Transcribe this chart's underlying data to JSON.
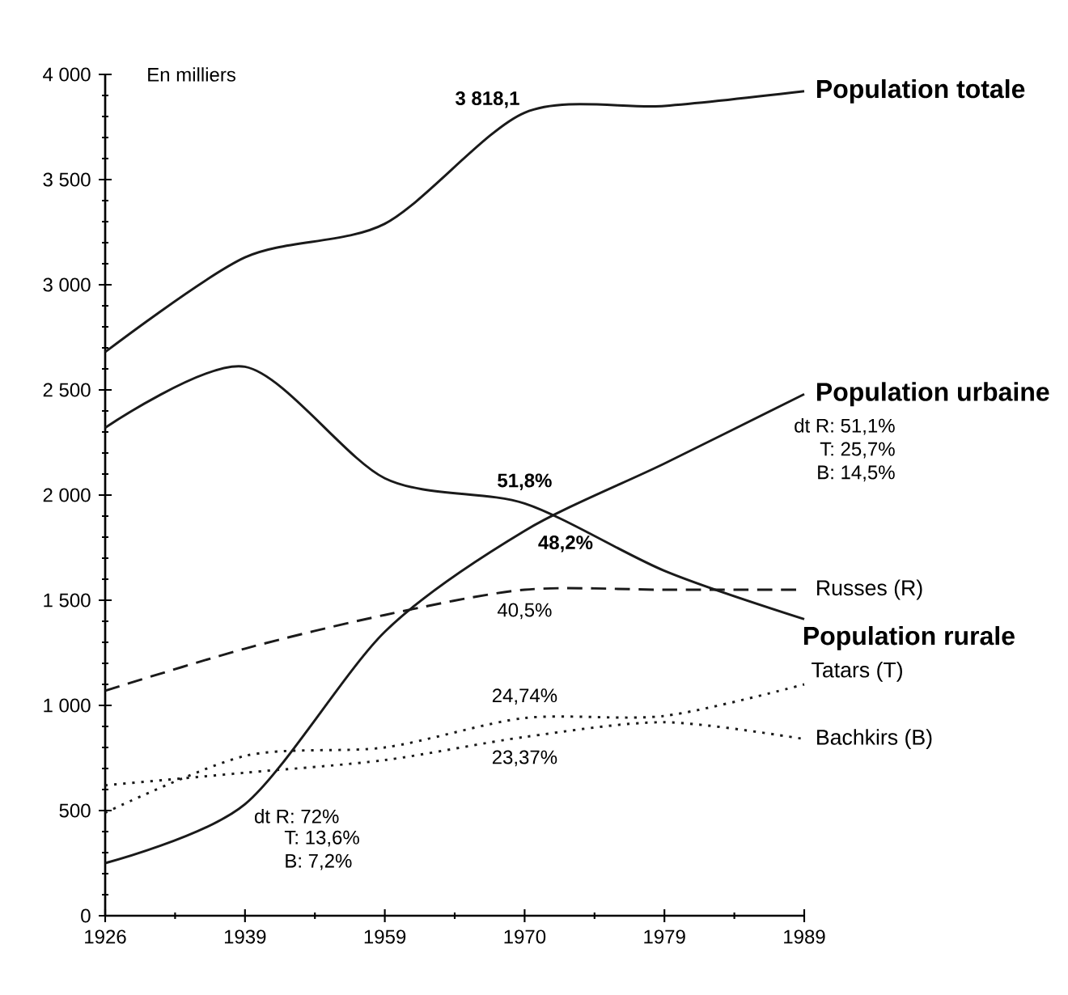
{
  "chart_data": {
    "type": "line",
    "ylabel": "En milliers",
    "ylim": [
      0,
      4000
    ],
    "categories": [
      "1926",
      "1939",
      "1959",
      "1970",
      "1979",
      "1989"
    ],
    "yticks": [
      0,
      500,
      {
        "value": 1000,
        "label": "1 000"
      },
      {
        "value": 1500,
        "label": "1 500"
      },
      {
        "value": 2000,
        "label": "2 000"
      },
      {
        "value": 2500,
        "label": "2 500"
      },
      {
        "value": 3000,
        "label": "3 000"
      },
      {
        "value": 3500,
        "label": "3 500"
      },
      {
        "value": 4000,
        "label": "4 000"
      }
    ],
    "grid": false,
    "marker": "none",
    "series": [
      {
        "name": "Population totale",
        "color": "#1a1a1a",
        "line_style": "solid",
        "values": [
          2680,
          3130,
          3290,
          3818,
          3850,
          3920
        ]
      },
      {
        "name": "Population urbaine",
        "color": "#1a1a1a",
        "line_style": "solid",
        "values": [
          250,
          530,
          1350,
          1830,
          2150,
          2480
        ]
      },
      {
        "name": "Population rurale",
        "color": "#1a1a1a",
        "line_style": "solid",
        "values": [
          2320,
          2610,
          2080,
          1960,
          1640,
          1410
        ]
      },
      {
        "name": "Russes (R)",
        "color": "#1a1a1a",
        "line_style": "dashed",
        "values": [
          1070,
          1270,
          1430,
          1550,
          1550,
          1550
        ]
      },
      {
        "name": "Tatars (T)",
        "color": "#1a1a1a",
        "line_style": "dotted",
        "values": [
          490,
          760,
          800,
          940,
          950,
          1100
        ]
      },
      {
        "name": "Bachkirs (B)",
        "color": "#1a1a1a",
        "line_style": "dotted",
        "values": [
          620,
          680,
          740,
          850,
          920,
          840
        ]
      }
    ],
    "annotations": [
      {
        "text": "3 818,1",
        "x": "1970",
        "y": 3818
      },
      {
        "text": "51,8%",
        "x": "1970",
        "y": 1960
      },
      {
        "text": "48,2%",
        "x": "1970",
        "y": 1830
      },
      {
        "text": "40,5%",
        "x": "1970",
        "y": 1550
      },
      {
        "text": "24,74%",
        "x": "1970",
        "y": 940
      },
      {
        "text": "23,37%",
        "x": "1970",
        "y": 850
      },
      {
        "text": "dt R: 72%",
        "x": "1939",
        "y": 530
      },
      "T: 13,6%",
      "B: 7,2%",
      {
        "text": "dt R: 51,1%",
        "x": "1989",
        "y": 2480
      },
      "T: 25,7%",
      "B: 14,5%"
    ]
  }
}
